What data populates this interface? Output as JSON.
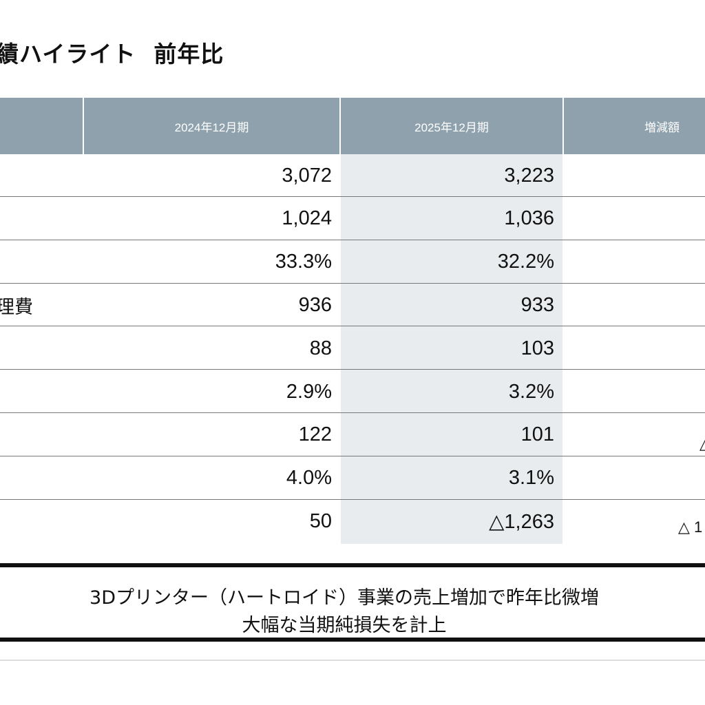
{
  "title": {
    "main": "績ハイライト",
    "sub": "前年比"
  },
  "columns": {
    "fy2024": "2024年12月期",
    "fy2025": "2025年12月期",
    "diff": "増減額"
  },
  "rows": [
    {
      "label": "",
      "fy2024": "3,072",
      "fy2025": "3,223",
      "diff": ""
    },
    {
      "label": "",
      "fy2024": "1,024",
      "fy2025": "1,036",
      "diff": ""
    },
    {
      "label": "",
      "fy2024": "33.3%",
      "fy2025": "32.2%",
      "diff": ""
    },
    {
      "label": "理費",
      "fy2024": "936",
      "fy2025": "933",
      "diff": ""
    },
    {
      "label": "",
      "fy2024": "88",
      "fy2025": "103",
      "diff": ""
    },
    {
      "label": "",
      "fy2024": "2.9%",
      "fy2025": "3.2%",
      "diff": ""
    },
    {
      "label": "",
      "fy2024": "122",
      "fy2025": "101",
      "diff": "△"
    },
    {
      "label": "",
      "fy2024": "4.0%",
      "fy2025": "3.1%",
      "diff": ""
    },
    {
      "label": "",
      "fy2024": "50",
      "fy2025": "△1,263",
      "diff": "△ 1"
    }
  ],
  "summary": {
    "line1": "3Dプリンター（ハートロイド）事業の売上増加で昨年比微増",
    "line2": "大幅な当期純損失を計上"
  }
}
